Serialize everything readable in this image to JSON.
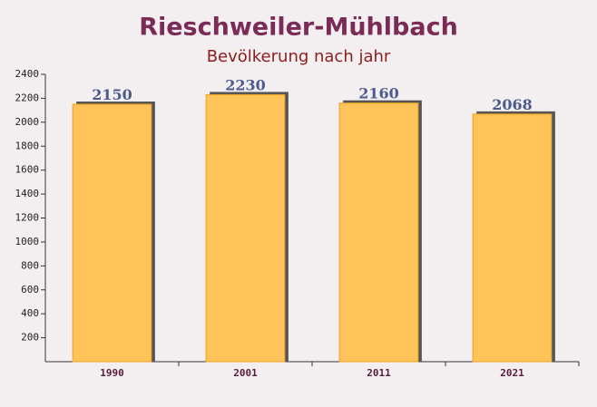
{
  "chart_data": {
    "type": "bar",
    "title": "Rieschweiler-Mühlbach",
    "subtitle": "Bevölkerung nach jahr",
    "categories": [
      "1990",
      "2001",
      "2011",
      "2021"
    ],
    "values": [
      2150,
      2230,
      2160,
      2068
    ],
    "color": "#fec459",
    "ylim": [
      0,
      2400
    ],
    "yticks": [
      200,
      400,
      600,
      800,
      1000,
      1200,
      1400,
      1600,
      1800,
      2000,
      2200,
      2400
    ]
  }
}
